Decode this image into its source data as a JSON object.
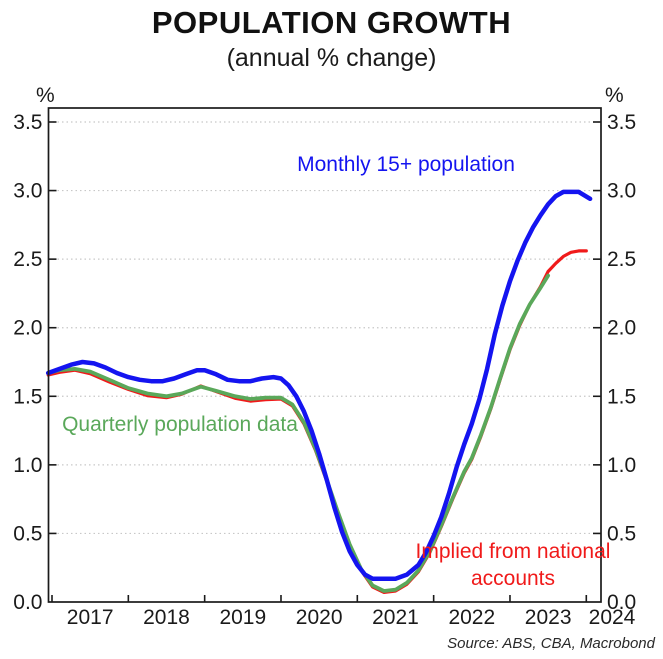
{
  "chart": {
    "title": "POPULATION GROWTH",
    "subtitle": "(annual % change)",
    "source": "Source: ABS, CBA, Macrobond"
  },
  "chart_data": {
    "type": "line",
    "title": "POPULATION GROWTH",
    "subtitle": "(annual % change)",
    "xlabel": "",
    "ylabel": "%",
    "grid": "horizontal-dotted",
    "legend_position": "inline-annotations",
    "x_range": [
      2016.95,
      2024.19
    ],
    "y_range": [
      0,
      3.5
    ],
    "y_ticks": [
      0,
      0.5,
      1,
      1.5,
      2,
      2.5,
      3,
      3.5
    ],
    "y_tick_labels": [
      "0.0",
      "0.5",
      "1.0",
      "1.5",
      "2.0",
      "2.5",
      "3.0",
      "3.5"
    ],
    "x_ticks": [
      2017,
      2018,
      2019,
      2020,
      2021,
      2022,
      2023,
      2024
    ],
    "x_tick_labels": [
      "2017",
      "2018",
      "2019",
      "2020",
      "2021",
      "2022",
      "2023",
      "2024"
    ],
    "colors": {
      "monthly": "#1414f0",
      "quarterly": "#5aa85a",
      "implied": "#f01a1a",
      "gridline": "#c8c8c8",
      "axis": "#1a1a1a"
    },
    "series": [
      {
        "name": "Monthly 15+ population",
        "key": "monthly-15plus-population",
        "color": "#1414f0",
        "stroke_width": 4.5,
        "points": [
          [
            2016.95,
            1.67
          ],
          [
            2017.1,
            1.7
          ],
          [
            2017.25,
            1.73
          ],
          [
            2017.4,
            1.75
          ],
          [
            2017.55,
            1.74
          ],
          [
            2017.7,
            1.71
          ],
          [
            2017.85,
            1.67
          ],
          [
            2018.0,
            1.64
          ],
          [
            2018.15,
            1.62
          ],
          [
            2018.3,
            1.61
          ],
          [
            2018.45,
            1.61
          ],
          [
            2018.6,
            1.63
          ],
          [
            2018.75,
            1.66
          ],
          [
            2018.9,
            1.69
          ],
          [
            2019.0,
            1.69
          ],
          [
            2019.15,
            1.66
          ],
          [
            2019.3,
            1.62
          ],
          [
            2019.45,
            1.61
          ],
          [
            2019.6,
            1.61
          ],
          [
            2019.75,
            1.63
          ],
          [
            2019.9,
            1.64
          ],
          [
            2020.0,
            1.63
          ],
          [
            2020.1,
            1.58
          ],
          [
            2020.2,
            1.5
          ],
          [
            2020.3,
            1.39
          ],
          [
            2020.4,
            1.25
          ],
          [
            2020.5,
            1.08
          ],
          [
            2020.6,
            0.89
          ],
          [
            2020.7,
            0.69
          ],
          [
            2020.8,
            0.51
          ],
          [
            2020.9,
            0.37
          ],
          [
            2021.0,
            0.27
          ],
          [
            2021.1,
            0.2
          ],
          [
            2021.2,
            0.17
          ],
          [
            2021.35,
            0.17
          ],
          [
            2021.5,
            0.17
          ],
          [
            2021.65,
            0.2
          ],
          [
            2021.8,
            0.27
          ],
          [
            2021.9,
            0.36
          ],
          [
            2022.0,
            0.48
          ],
          [
            2022.1,
            0.62
          ],
          [
            2022.2,
            0.79
          ],
          [
            2022.3,
            0.98
          ],
          [
            2022.4,
            1.15
          ],
          [
            2022.5,
            1.3
          ],
          [
            2022.6,
            1.48
          ],
          [
            2022.7,
            1.7
          ],
          [
            2022.8,
            1.95
          ],
          [
            2022.9,
            2.16
          ],
          [
            2023.0,
            2.34
          ],
          [
            2023.1,
            2.49
          ],
          [
            2023.2,
            2.62
          ],
          [
            2023.3,
            2.73
          ],
          [
            2023.4,
            2.82
          ],
          [
            2023.5,
            2.9
          ],
          [
            2023.6,
            2.96
          ],
          [
            2023.7,
            2.99
          ],
          [
            2023.8,
            2.99
          ],
          [
            2023.9,
            2.99
          ],
          [
            2024.05,
            2.94
          ]
        ]
      },
      {
        "name": "Quarterly population data",
        "key": "quarterly-population-data",
        "color": "#5aa85a",
        "stroke_width": 3.8,
        "points": [
          [
            2016.95,
            1.67
          ],
          [
            2017.1,
            1.69
          ],
          [
            2017.3,
            1.7
          ],
          [
            2017.5,
            1.68
          ],
          [
            2017.75,
            1.62
          ],
          [
            2018.0,
            1.56
          ],
          [
            2018.25,
            1.52
          ],
          [
            2018.5,
            1.5
          ],
          [
            2018.7,
            1.52
          ],
          [
            2018.95,
            1.57
          ],
          [
            2019.15,
            1.54
          ],
          [
            2019.4,
            1.5
          ],
          [
            2019.6,
            1.48
          ],
          [
            2019.8,
            1.49
          ],
          [
            2020.0,
            1.49
          ],
          [
            2020.15,
            1.44
          ],
          [
            2020.3,
            1.31
          ],
          [
            2020.45,
            1.12
          ],
          [
            2020.6,
            0.89
          ],
          [
            2020.75,
            0.65
          ],
          [
            2020.9,
            0.42
          ],
          [
            2021.05,
            0.24
          ],
          [
            2021.2,
            0.12
          ],
          [
            2021.35,
            0.08
          ],
          [
            2021.5,
            0.09
          ],
          [
            2021.65,
            0.14
          ],
          [
            2021.8,
            0.23
          ],
          [
            2021.95,
            0.37
          ],
          [
            2022.1,
            0.56
          ],
          [
            2022.25,
            0.76
          ],
          [
            2022.4,
            0.95
          ],
          [
            2022.5,
            1.05
          ],
          [
            2022.62,
            1.22
          ],
          [
            2022.75,
            1.42
          ],
          [
            2022.87,
            1.63
          ],
          [
            2023.0,
            1.85
          ],
          [
            2023.13,
            2.03
          ],
          [
            2023.26,
            2.17
          ],
          [
            2023.4,
            2.29
          ],
          [
            2023.5,
            2.38
          ]
        ]
      },
      {
        "name": "Implied from national accounts",
        "key": "implied-from-national-accounts",
        "color": "#f01a1a",
        "stroke_width": 3.2,
        "points": [
          [
            2016.95,
            1.655
          ],
          [
            2017.1,
            1.675
          ],
          [
            2017.3,
            1.69
          ],
          [
            2017.5,
            1.665
          ],
          [
            2017.75,
            1.605
          ],
          [
            2018.0,
            1.55
          ],
          [
            2018.25,
            1.505
          ],
          [
            2018.5,
            1.49
          ],
          [
            2018.7,
            1.515
          ],
          [
            2018.95,
            1.575
          ],
          [
            2019.15,
            1.535
          ],
          [
            2019.4,
            1.485
          ],
          [
            2019.6,
            1.465
          ],
          [
            2019.8,
            1.475
          ],
          [
            2020.0,
            1.48
          ],
          [
            2020.15,
            1.43
          ],
          [
            2020.3,
            1.3
          ],
          [
            2020.45,
            1.11
          ],
          [
            2020.6,
            0.88
          ],
          [
            2020.75,
            0.64
          ],
          [
            2020.9,
            0.41
          ],
          [
            2021.05,
            0.23
          ],
          [
            2021.2,
            0.11
          ],
          [
            2021.35,
            0.07
          ],
          [
            2021.5,
            0.08
          ],
          [
            2021.65,
            0.13
          ],
          [
            2021.8,
            0.22
          ],
          [
            2021.95,
            0.36
          ],
          [
            2022.1,
            0.55
          ],
          [
            2022.25,
            0.75
          ],
          [
            2022.4,
            0.94
          ],
          [
            2022.5,
            1.04
          ],
          [
            2022.62,
            1.21
          ],
          [
            2022.75,
            1.41
          ],
          [
            2022.87,
            1.62
          ],
          [
            2023.0,
            1.84
          ],
          [
            2023.13,
            2.02
          ],
          [
            2023.26,
            2.17
          ],
          [
            2023.4,
            2.3
          ],
          [
            2023.5,
            2.41
          ],
          [
            2023.6,
            2.47
          ],
          [
            2023.7,
            2.52
          ],
          [
            2023.8,
            2.55
          ],
          [
            2023.9,
            2.56
          ],
          [
            2024.0,
            2.56
          ]
        ]
      }
    ],
    "annotations": [
      {
        "text": "Monthly 15+ population",
        "color": "#1414f0"
      },
      {
        "text": "Quarterly population data",
        "color": "#5aa85a"
      },
      {
        "text": "Implied from national accounts",
        "color": "#f01a1a"
      }
    ]
  }
}
